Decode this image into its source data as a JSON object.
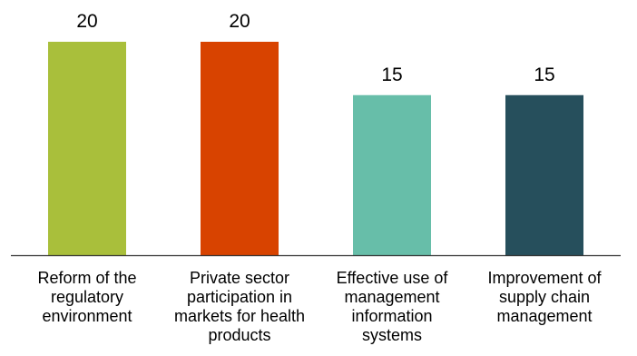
{
  "chart_data": {
    "type": "bar",
    "categories": [
      [
        "Reform of the",
        "regulatory",
        "environment"
      ],
      [
        "Private sector",
        "participation in",
        "markets for health",
        "products"
      ],
      [
        "Effective use of",
        "management",
        "information",
        "systems"
      ],
      [
        "Improvement of",
        "supply chain",
        "management"
      ]
    ],
    "values": [
      20,
      20,
      15,
      15
    ],
    "colors": [
      "#a9bf3b",
      "#d84300",
      "#67bea9",
      "#264f5c"
    ],
    "axis_color": "#333333",
    "ylim": [
      0,
      20
    ],
    "grid": false,
    "legend": "none"
  }
}
